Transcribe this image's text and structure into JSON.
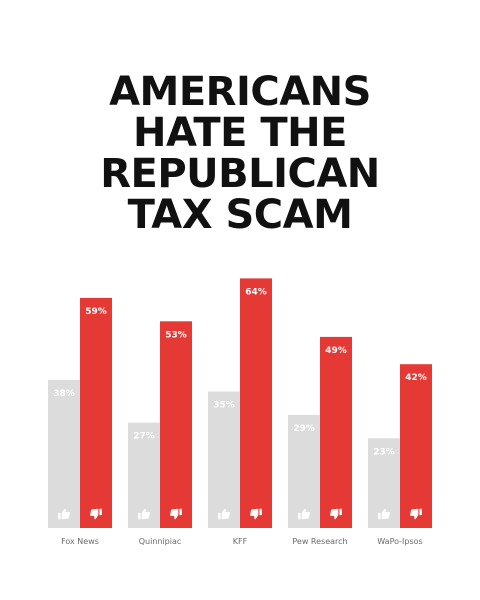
{
  "title_lines": [
    "AMERICANS",
    "HATE THE",
    "REPUBLICAN",
    "TAX SCAM"
  ],
  "chart_data": {
    "type": "bar",
    "categories": [
      "Fox News",
      "Quinnipiac",
      "KFF",
      "Pew Research",
      "WaPo-Ipsos"
    ],
    "series": [
      {
        "values": [
          38,
          27,
          35,
          29,
          23
        ],
        "color": "#dcdcdc",
        "icon": "thumbs-up-icon"
      },
      {
        "values": [
          59,
          53,
          64,
          49,
          42
        ],
        "color": "#e53935",
        "icon": "thumbs-down-icon"
      }
    ],
    "value_labels": [
      [
        "38%",
        "27%",
        "35%",
        "29%",
        "23%"
      ],
      [
        "59%",
        "53%",
        "64%",
        "49%",
        "42%"
      ]
    ],
    "ylim": [
      0,
      100
    ],
    "grid": false,
    "legend": "none"
  }
}
